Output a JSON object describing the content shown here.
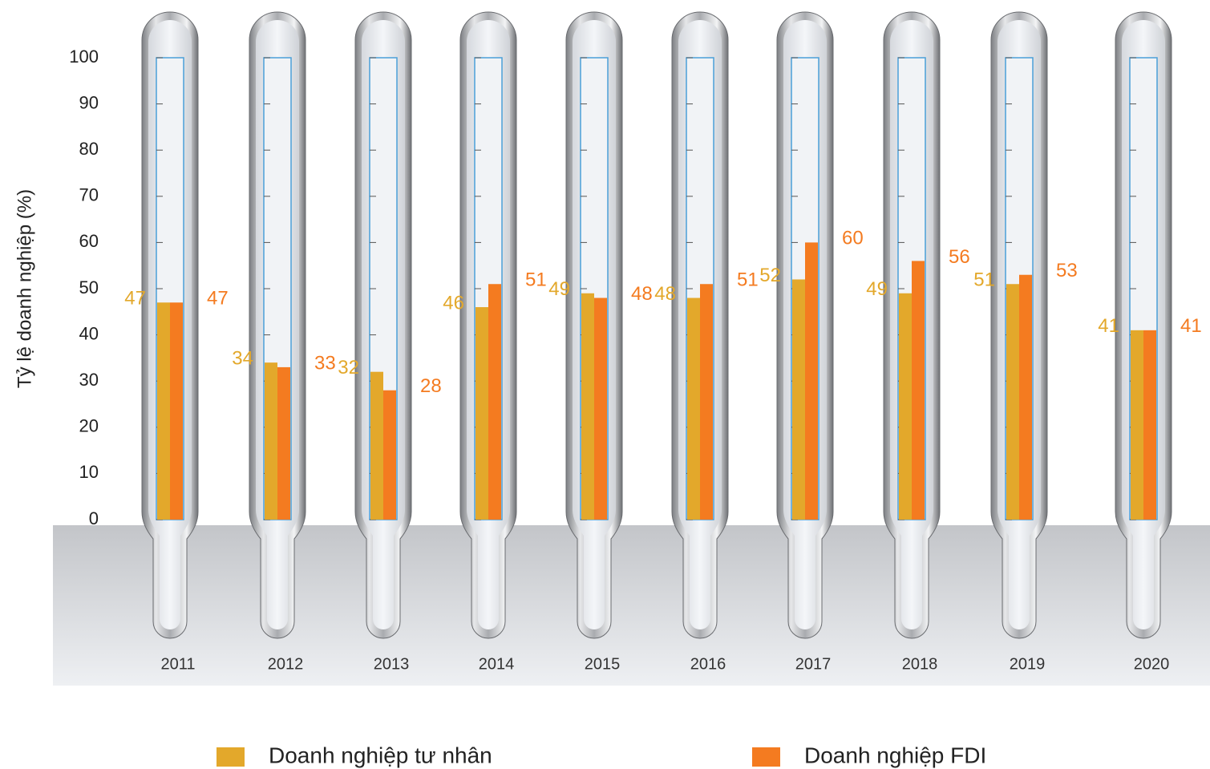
{
  "chart_data": {
    "type": "bar",
    "y_label": "Tỷ lệ doanh nghiệp (%)",
    "categories": [
      "2011",
      "2012",
      "2013",
      "2014",
      "2015",
      "2016",
      "2017",
      "2018",
      "2019",
      "2020"
    ],
    "series": [
      {
        "name": "Doanh nghiệp tư nhân",
        "color": "#e3a82b",
        "values": [
          47,
          34,
          32,
          46,
          49,
          48,
          52,
          49,
          51,
          41
        ]
      },
      {
        "name": "Doanh nghiệp FDI",
        "color": "#f47b20",
        "values": [
          47,
          33,
          28,
          51,
          48,
          51,
          60,
          56,
          53,
          41
        ]
      }
    ],
    "ylim": [
      0,
      100
    ],
    "yticks": [
      0,
      10,
      20,
      30,
      40,
      50,
      60,
      70,
      80,
      90,
      100
    ]
  }
}
